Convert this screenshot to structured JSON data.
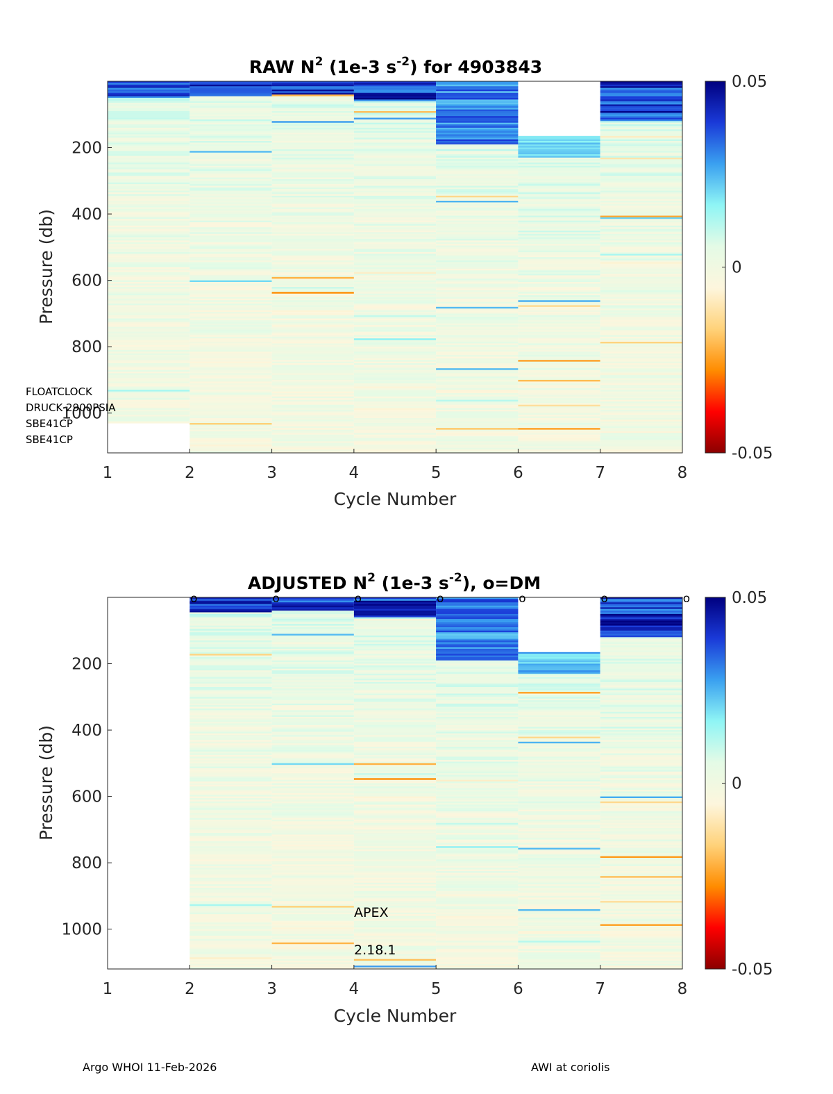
{
  "colormap": {
    "name": "jet-like",
    "stops": [
      "#8b0000",
      "#ff0000",
      "#ff8c00",
      "#ffd27a",
      "#fdf6dd",
      "#e4fbe6",
      "#8ff5f5",
      "#3aa0f0",
      "#1a3ad8",
      "#00007f"
    ]
  },
  "chart_data": [
    {
      "id": "raw",
      "type": "heatmap",
      "title_prefix": "RAW N",
      "title_suffix": " (1e-3 s",
      "title_tail": ") for 4903843",
      "title_sup1": "2",
      "title_sup2": "-2",
      "xlabel": "Cycle Number",
      "ylabel": "Pressure (db)",
      "xlim": [
        1,
        8
      ],
      "ylim": [
        1120,
        0
      ],
      "xticks": [
        "1",
        "2",
        "3",
        "4",
        "5",
        "6",
        "7",
        "8"
      ],
      "yticks": [
        "200",
        "400",
        "600",
        "800",
        "1000"
      ],
      "colorbar": {
        "min": -0.05,
        "max": 0.05,
        "ticks": [
          "0.05",
          "0",
          "-0.05"
        ]
      },
      "profiles": [
        {
          "cycle": 1,
          "pmin": 0,
          "pmax": 1030,
          "surface": 0.045,
          "mixed": 50
        },
        {
          "cycle": 2,
          "pmin": 0,
          "pmax": 1120,
          "surface": 0.05,
          "mixed": 45
        },
        {
          "cycle": 3,
          "pmin": 0,
          "pmax": 1120,
          "surface": 0.05,
          "mixed": 40
        },
        {
          "cycle": 4,
          "pmin": 0,
          "pmax": 1120,
          "surface": 0.05,
          "mixed": 60
        },
        {
          "cycle": 5,
          "pmin": 0,
          "pmax": 1120,
          "surface": 0.04,
          "mixed": 190
        },
        {
          "cycle": 6,
          "pmin": 165,
          "pmax": 1120,
          "surface": 0.03,
          "mixed": 230
        },
        {
          "cycle": 7,
          "pmin": 0,
          "pmax": 1120,
          "surface": 0.05,
          "mixed": 120
        }
      ],
      "dm_markers": []
    },
    {
      "id": "adjusted",
      "type": "heatmap",
      "title_prefix": "ADJUSTED N",
      "title_suffix": " (1e-3 s",
      "title_tail": "), o=DM",
      "title_sup1": "2",
      "title_sup2": "-2",
      "xlabel": "Cycle Number",
      "ylabel": "Pressure (db)",
      "xlim": [
        1,
        8
      ],
      "ylim": [
        1120,
        0
      ],
      "xticks": [
        "1",
        "2",
        "3",
        "4",
        "5",
        "6",
        "7",
        "8"
      ],
      "yticks": [
        "200",
        "400",
        "600",
        "800",
        "1000"
      ],
      "colorbar": {
        "min": -0.05,
        "max": 0.05,
        "ticks": [
          "0.05",
          "0",
          "-0.05"
        ]
      },
      "profiles": [
        {
          "cycle": 2,
          "pmin": 0,
          "pmax": 1120,
          "surface": 0.05,
          "mixed": 45
        },
        {
          "cycle": 3,
          "pmin": 0,
          "pmax": 1120,
          "surface": 0.05,
          "mixed": 40
        },
        {
          "cycle": 4,
          "pmin": 0,
          "pmax": 1120,
          "surface": 0.05,
          "mixed": 60
        },
        {
          "cycle": 5,
          "pmin": 0,
          "pmax": 1120,
          "surface": 0.04,
          "mixed": 190
        },
        {
          "cycle": 6,
          "pmin": 165,
          "pmax": 1120,
          "surface": 0.03,
          "mixed": 230
        },
        {
          "cycle": 7,
          "pmin": 0,
          "pmax": 1120,
          "surface": 0.05,
          "mixed": 120
        }
      ],
      "dm_markers": [
        2,
        3,
        4,
        5,
        6,
        7,
        8
      ],
      "dm_symbol": "o",
      "annotations": [
        "APEX",
        "2.18.1"
      ]
    }
  ],
  "sensor_labels": [
    "FLOATCLOCK",
    "DRUCK 2900PSIA",
    "SBE41CP",
    "SBE41CP"
  ],
  "footer": {
    "left": "Argo WHOI 11-Feb-2026",
    "right": "AWI at coriolis"
  }
}
